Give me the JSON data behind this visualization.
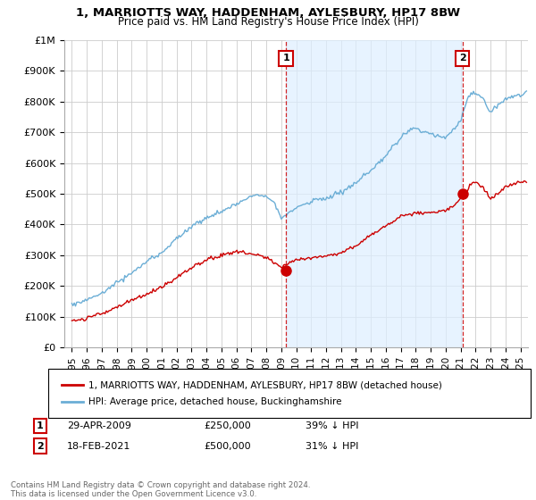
{
  "title": "1, MARRIOTTS WAY, HADDENHAM, AYLESBURY, HP17 8BW",
  "subtitle": "Price paid vs. HM Land Registry's House Price Index (HPI)",
  "ylabel_ticks": [
    "£0",
    "£100K",
    "£200K",
    "£300K",
    "£400K",
    "£500K",
    "£600K",
    "£700K",
    "£800K",
    "£900K",
    "£1M"
  ],
  "ytick_values": [
    0,
    100000,
    200000,
    300000,
    400000,
    500000,
    600000,
    700000,
    800000,
    900000,
    1000000
  ],
  "ylim": [
    0,
    1000000
  ],
  "xlim_start": 1994.5,
  "xlim_end": 2025.5,
  "hpi_color": "#6baed6",
  "hpi_fill_color": "#ddeeff",
  "price_color": "#cc0000",
  "marker1_x": 2009.32,
  "marker1_y": 250000,
  "marker1_label": "1",
  "marker1_date": "29-APR-2009",
  "marker1_price": "£250,000",
  "marker1_pct": "39% ↓ HPI",
  "marker2_x": 2021.12,
  "marker2_y": 500000,
  "marker2_label": "2",
  "marker2_date": "18-FEB-2021",
  "marker2_price": "£500,000",
  "marker2_pct": "31% ↓ HPI",
  "legend_line1": "1, MARRIOTTS WAY, HADDENHAM, AYLESBURY, HP17 8BW (detached house)",
  "legend_line2": "HPI: Average price, detached house, Buckinghamshire",
  "footer": "Contains HM Land Registry data © Crown copyright and database right 2024.\nThis data is licensed under the Open Government Licence v3.0.",
  "xtick_years": [
    1995,
    1996,
    1997,
    1998,
    1999,
    2000,
    2001,
    2002,
    2003,
    2004,
    2005,
    2006,
    2007,
    2008,
    2009,
    2010,
    2011,
    2012,
    2013,
    2014,
    2015,
    2016,
    2017,
    2018,
    2019,
    2020,
    2021,
    2022,
    2023,
    2024,
    2025
  ],
  "grid_color": "#cccccc",
  "bg_color": "#ffffff"
}
